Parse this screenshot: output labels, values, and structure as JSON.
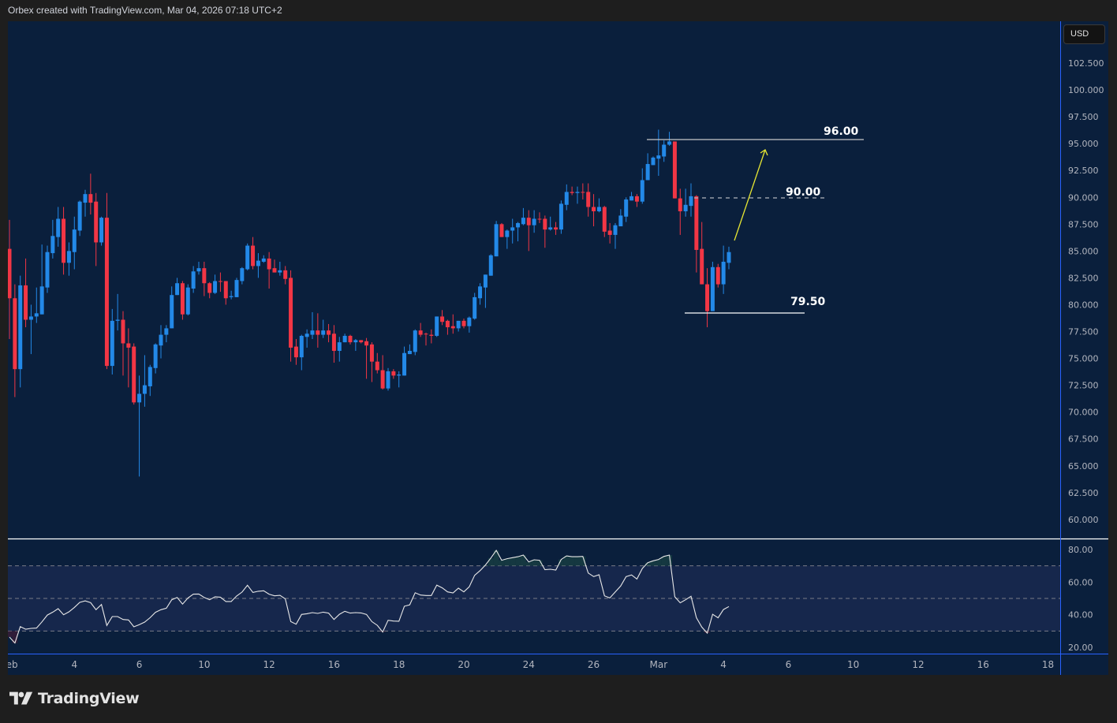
{
  "header": {
    "caption": "Orbex created with TradingView.com, Mar 04, 2026 07:18 UTC+2"
  },
  "currency_button": "USD",
  "logo": {
    "text": "TradingView"
  },
  "colors": {
    "background": "#0a1f3c",
    "frame": "#1e1e1e",
    "up": "#2389e8",
    "down": "#f23645",
    "rsi_line": "#e8e8e8",
    "rsi_band": "#16274c",
    "arrow": "#e6e633",
    "axis_line": "#2962ff"
  },
  "chart_data": {
    "type": "candlestick",
    "timeframe_per_candle": "4h",
    "candle_format": [
      "open",
      "high",
      "low",
      "close"
    ],
    "candles": [
      [
        85.2,
        87.9,
        76.8,
        80.6
      ],
      [
        80.6,
        81.9,
        71.4,
        74.0
      ],
      [
        74.0,
        82.7,
        72.3,
        81.8
      ],
      [
        81.8,
        84.3,
        77.9,
        78.6
      ],
      [
        78.6,
        80.0,
        75.4,
        78.9
      ],
      [
        78.9,
        81.6,
        78.3,
        79.2
      ],
      [
        79.1,
        85.6,
        79.1,
        81.7
      ],
      [
        81.6,
        85.5,
        81.1,
        84.9
      ],
      [
        84.8,
        87.9,
        84.3,
        86.4
      ],
      [
        86.3,
        89.1,
        85.4,
        88.0
      ],
      [
        88.0,
        89.1,
        82.8,
        83.9
      ],
      [
        83.9,
        85.8,
        82.7,
        85.0
      ],
      [
        84.9,
        88.2,
        83.3,
        87.0
      ],
      [
        86.9,
        89.7,
        86.4,
        89.6
      ],
      [
        89.5,
        90.7,
        88.2,
        90.3
      ],
      [
        90.3,
        92.2,
        88.4,
        89.5
      ],
      [
        89.6,
        90.4,
        83.6,
        85.8
      ],
      [
        85.8,
        88.2,
        85.5,
        88.1
      ],
      [
        88.1,
        90.4,
        74.0,
        74.3
      ],
      [
        74.3,
        79.6,
        73.5,
        78.5
      ],
      [
        78.5,
        81.0,
        77.6,
        78.6
      ],
      [
        78.6,
        79.4,
        73.4,
        76.4
      ],
      [
        76.4,
        77.8,
        72.3,
        76.0
      ],
      [
        76.1,
        76.4,
        70.7,
        70.9
      ],
      [
        70.9,
        73.4,
        64.0,
        71.7
      ],
      [
        71.7,
        75.3,
        70.5,
        72.5
      ],
      [
        72.4,
        74.4,
        71.5,
        74.2
      ],
      [
        74.1,
        76.4,
        73.6,
        76.3
      ],
      [
        76.2,
        78.1,
        75.0,
        77.2
      ],
      [
        77.2,
        78.1,
        76.5,
        77.8
      ],
      [
        77.8,
        81.7,
        77.8,
        80.9
      ],
      [
        80.9,
        82.5,
        80.9,
        82.0
      ],
      [
        82.0,
        82.2,
        78.6,
        79.1
      ],
      [
        79.1,
        81.9,
        79.0,
        81.6
      ],
      [
        81.5,
        83.6,
        81.1,
        83.1
      ],
      [
        83.1,
        84.0,
        82.8,
        83.4
      ],
      [
        83.4,
        84.0,
        80.8,
        82.0
      ],
      [
        82.0,
        82.1,
        80.6,
        81.1
      ],
      [
        81.1,
        82.8,
        81.0,
        82.2
      ],
      [
        82.2,
        83.0,
        81.2,
        82.15
      ],
      [
        82.2,
        82.2,
        80.0,
        80.6
      ],
      [
        80.7,
        81.3,
        80.5,
        80.8
      ],
      [
        80.7,
        82.5,
        80.7,
        82.3
      ],
      [
        82.2,
        83.5,
        81.9,
        83.4
      ],
      [
        83.3,
        85.7,
        83.2,
        85.5
      ],
      [
        85.5,
        86.3,
        83.3,
        83.6
      ],
      [
        83.6,
        84.8,
        82.5,
        84.1
      ],
      [
        84.0,
        84.6,
        83.9,
        84.3
      ],
      [
        84.3,
        84.9,
        81.5,
        83.3
      ],
      [
        83.4,
        84.2,
        83.0,
        83.0
      ],
      [
        83.0,
        84.0,
        82.7,
        83.2
      ],
      [
        83.2,
        83.6,
        81.9,
        82.4
      ],
      [
        82.5,
        83.2,
        74.7,
        76.0
      ],
      [
        76.1,
        76.8,
        74.4,
        75.1
      ],
      [
        75.1,
        77.2,
        73.9,
        77.1
      ],
      [
        77.0,
        77.7,
        76.0,
        77.3
      ],
      [
        77.2,
        79.3,
        76.8,
        77.6
      ],
      [
        77.6,
        79.2,
        76.0,
        77.2
      ],
      [
        77.2,
        78.6,
        76.9,
        77.6
      ],
      [
        77.6,
        78.2,
        76.5,
        77.2
      ],
      [
        77.3,
        78.1,
        74.6,
        75.7
      ],
      [
        75.7,
        77.0,
        74.7,
        76.5
      ],
      [
        76.5,
        77.3,
        76.5,
        77.1
      ],
      [
        77.1,
        77.2,
        76.3,
        76.5
      ],
      [
        76.5,
        76.8,
        75.7,
        76.7
      ],
      [
        76.7,
        76.7,
        76.4,
        76.5
      ],
      [
        76.6,
        76.9,
        73.1,
        76.2
      ],
      [
        76.3,
        76.5,
        72.8,
        74.7
      ],
      [
        74.7,
        75.5,
        73.6,
        73.9
      ],
      [
        73.9,
        75.3,
        72.1,
        72.2
      ],
      [
        72.2,
        74.1,
        72.0,
        73.8
      ],
      [
        73.8,
        74.0,
        73.1,
        73.4
      ],
      [
        73.4,
        73.8,
        72.3,
        73.5
      ],
      [
        73.4,
        76.1,
        73.4,
        75.5
      ],
      [
        75.4,
        76.3,
        75.4,
        75.7
      ],
      [
        75.6,
        77.7,
        75.3,
        77.6
      ],
      [
        77.6,
        78.3,
        77.0,
        77.2
      ],
      [
        77.3,
        77.4,
        76.2,
        77.25
      ],
      [
        77.2,
        77.7,
        76.4,
        77.1
      ],
      [
        77.1,
        78.9,
        77.0,
        78.9
      ],
      [
        78.9,
        79.5,
        78.1,
        78.4
      ],
      [
        78.5,
        78.6,
        77.2,
        77.9
      ],
      [
        78.0,
        79.1,
        77.3,
        77.8
      ],
      [
        77.8,
        78.5,
        77.5,
        78.5
      ],
      [
        78.5,
        78.7,
        77.8,
        78.0
      ],
      [
        78.0,
        78.9,
        77.4,
        78.8
      ],
      [
        78.7,
        81.1,
        78.6,
        80.7
      ],
      [
        80.6,
        82.0,
        80.0,
        81.7
      ],
      [
        81.6,
        82.8,
        79.7,
        82.8
      ],
      [
        82.7,
        84.7,
        82.7,
        84.6
      ],
      [
        84.5,
        87.8,
        84.5,
        87.5
      ],
      [
        87.5,
        87.6,
        86.3,
        86.3
      ],
      [
        86.3,
        87.0,
        85.2,
        86.9
      ],
      [
        86.9,
        88.0,
        85.7,
        87.2
      ],
      [
        87.2,
        87.7,
        85.9,
        87.6
      ],
      [
        87.5,
        89.0,
        87.4,
        88.1
      ],
      [
        88.1,
        88.8,
        85.0,
        87.4
      ],
      [
        87.4,
        88.8,
        86.7,
        88.0
      ],
      [
        88.0,
        88.6,
        87.6,
        87.95
      ],
      [
        88.0,
        88.3,
        85.3,
        87.0
      ],
      [
        87.0,
        88.2,
        86.9,
        87.2
      ],
      [
        87.2,
        87.7,
        86.5,
        87.0
      ],
      [
        87.0,
        89.7,
        86.6,
        89.4
      ],
      [
        89.3,
        91.2,
        88.8,
        90.5
      ],
      [
        90.5,
        91.0,
        90.2,
        90.4
      ],
      [
        90.4,
        91.0,
        89.4,
        90.5
      ],
      [
        90.5,
        91.3,
        89.8,
        90.45
      ],
      [
        90.5,
        91.3,
        88.2,
        89.1
      ],
      [
        89.1,
        90.3,
        87.3,
        88.7
      ],
      [
        88.7,
        89.9,
        88.6,
        89.1
      ],
      [
        89.1,
        89.2,
        86.3,
        86.8
      ],
      [
        86.9,
        87.6,
        85.7,
        86.5
      ],
      [
        86.5,
        87.6,
        85.2,
        87.4
      ],
      [
        87.3,
        88.9,
        87.3,
        88.3
      ],
      [
        88.2,
        90.0,
        87.7,
        89.8
      ],
      [
        89.7,
        90.5,
        89.7,
        90.1
      ],
      [
        90.1,
        90.3,
        89.1,
        89.6
      ],
      [
        89.6,
        92.7,
        89.4,
        91.6
      ],
      [
        91.6,
        94.1,
        91.6,
        93.1
      ],
      [
        93.0,
        93.8,
        93.0,
        93.7
      ],
      [
        93.6,
        96.3,
        92.0,
        93.9
      ],
      [
        93.8,
        95.3,
        93.3,
        94.9
      ],
      [
        94.9,
        96.1,
        94.8,
        95.2
      ],
      [
        95.2,
        95.2,
        89.9,
        89.9
      ],
      [
        89.9,
        90.8,
        86.5,
        88.7
      ],
      [
        88.7,
        90.8,
        88.2,
        89.3
      ],
      [
        89.2,
        91.3,
        88.2,
        90.1
      ],
      [
        90.1,
        90.2,
        83.0,
        85.1
      ],
      [
        85.2,
        87.7,
        81.9,
        81.9
      ],
      [
        81.9,
        83.4,
        77.9,
        79.4
      ],
      [
        79.4,
        84.0,
        79.4,
        83.5
      ],
      [
        83.5,
        83.8,
        81.6,
        81.9
      ],
      [
        81.9,
        85.5,
        81.0,
        84.0
      ],
      [
        83.9,
        85.4,
        83.3,
        84.9
      ]
    ],
    "ylim": [
      57.5,
      105
    ],
    "y_ticks": [
      "102.500",
      "100.000",
      "97.500",
      "95.000",
      "92.500",
      "90.000",
      "87.500",
      "85.000",
      "82.500",
      "80.000",
      "77.500",
      "75.000",
      "72.500",
      "70.000",
      "67.500",
      "65.000",
      "62.500",
      "60.000"
    ],
    "x_ticks": [
      {
        "label": "Feb",
        "bar": 0
      },
      {
        "label": "4",
        "bar": 12
      },
      {
        "label": "6",
        "bar": 24
      },
      {
        "label": "10",
        "bar": 36
      },
      {
        "label": "12",
        "bar": 48
      },
      {
        "label": "16",
        "bar": 60
      },
      {
        "label": "18",
        "bar": 72
      },
      {
        "label": "20",
        "bar": 84
      },
      {
        "label": "24",
        "bar": 96
      },
      {
        "label": "26",
        "bar": 108
      },
      {
        "label": "Mar",
        "bar": 120
      },
      {
        "label": "4",
        "bar": 132
      },
      {
        "label": "6",
        "bar": 144
      },
      {
        "label": "10",
        "bar": 156
      },
      {
        "label": "12",
        "bar": 168
      },
      {
        "label": "16",
        "bar": 180
      },
      {
        "label": "18",
        "bar": 192
      }
    ],
    "annotations": {
      "levels": [
        {
          "label": "96.00",
          "style": "solid"
        },
        {
          "label": "90.00",
          "style": "dashed"
        },
        {
          "label": "79.50",
          "style": "solid"
        }
      ],
      "arrow": {
        "direction": "up",
        "color": "#e6e633"
      }
    },
    "rsi": {
      "values": [
        26.3,
        22.6,
        32.7,
        31.1,
        31.6,
        31.8,
        35.6,
        39.8,
        41.6,
        43.7,
        40.0,
        41.8,
        44.5,
        47.6,
        48.5,
        47.4,
        43.1,
        46.3,
        33.4,
        38.9,
        38.9,
        37.1,
        36.8,
        32.6,
        33.9,
        35.5,
        38.2,
        41.5,
        43.1,
        44.0,
        49.2,
        50.6,
        46.5,
        50.3,
        52.6,
        52.7,
        50.6,
        49.2,
        51.0,
        50.8,
        48.1,
        48.1,
        51.5,
        53.9,
        58.1,
        53.7,
        54.4,
        54.7,
        52.6,
        51.6,
        51.9,
        49.7,
        35.8,
        34.2,
        40.2,
        40.6,
        41.3,
        40.8,
        41.6,
        41.0,
        37.1,
        40.3,
        42.1,
        41.0,
        41.3,
        41.1,
        40.2,
        35.8,
        33.5,
        29.4,
        36.6,
        36.1,
        36.0,
        45.2,
        46.1,
        53.5,
        52.1,
        51.8,
        51.8,
        58.2,
        56.5,
        54.0,
        53.4,
        56.3,
        54.0,
        57.1,
        64.2,
        67.1,
        70.5,
        74.8,
        79.5,
        73.4,
        74.4,
        75.0,
        75.6,
        76.6,
        72.4,
        73.7,
        73.4,
        67.6,
        67.9,
        67.4,
        73.9,
        76.1,
        75.6,
        75.6,
        75.8,
        65.6,
        63.4,
        64.5,
        51.6,
        50.3,
        54.0,
        57.6,
        63.4,
        64.4,
        61.9,
        68.4,
        71.9,
        73.1,
        73.9,
        75.8,
        76.6,
        51.0,
        47.3,
        49.2,
        51.3,
        38.2,
        32.4,
        28.7,
        40.3,
        38.1,
        43.2,
        45.0
      ],
      "levels": [
        70,
        50,
        30
      ],
      "y_ticks": [
        "80.00",
        "60.00",
        "40.00",
        "20.00"
      ],
      "ylim": [
        14,
        86
      ]
    }
  }
}
